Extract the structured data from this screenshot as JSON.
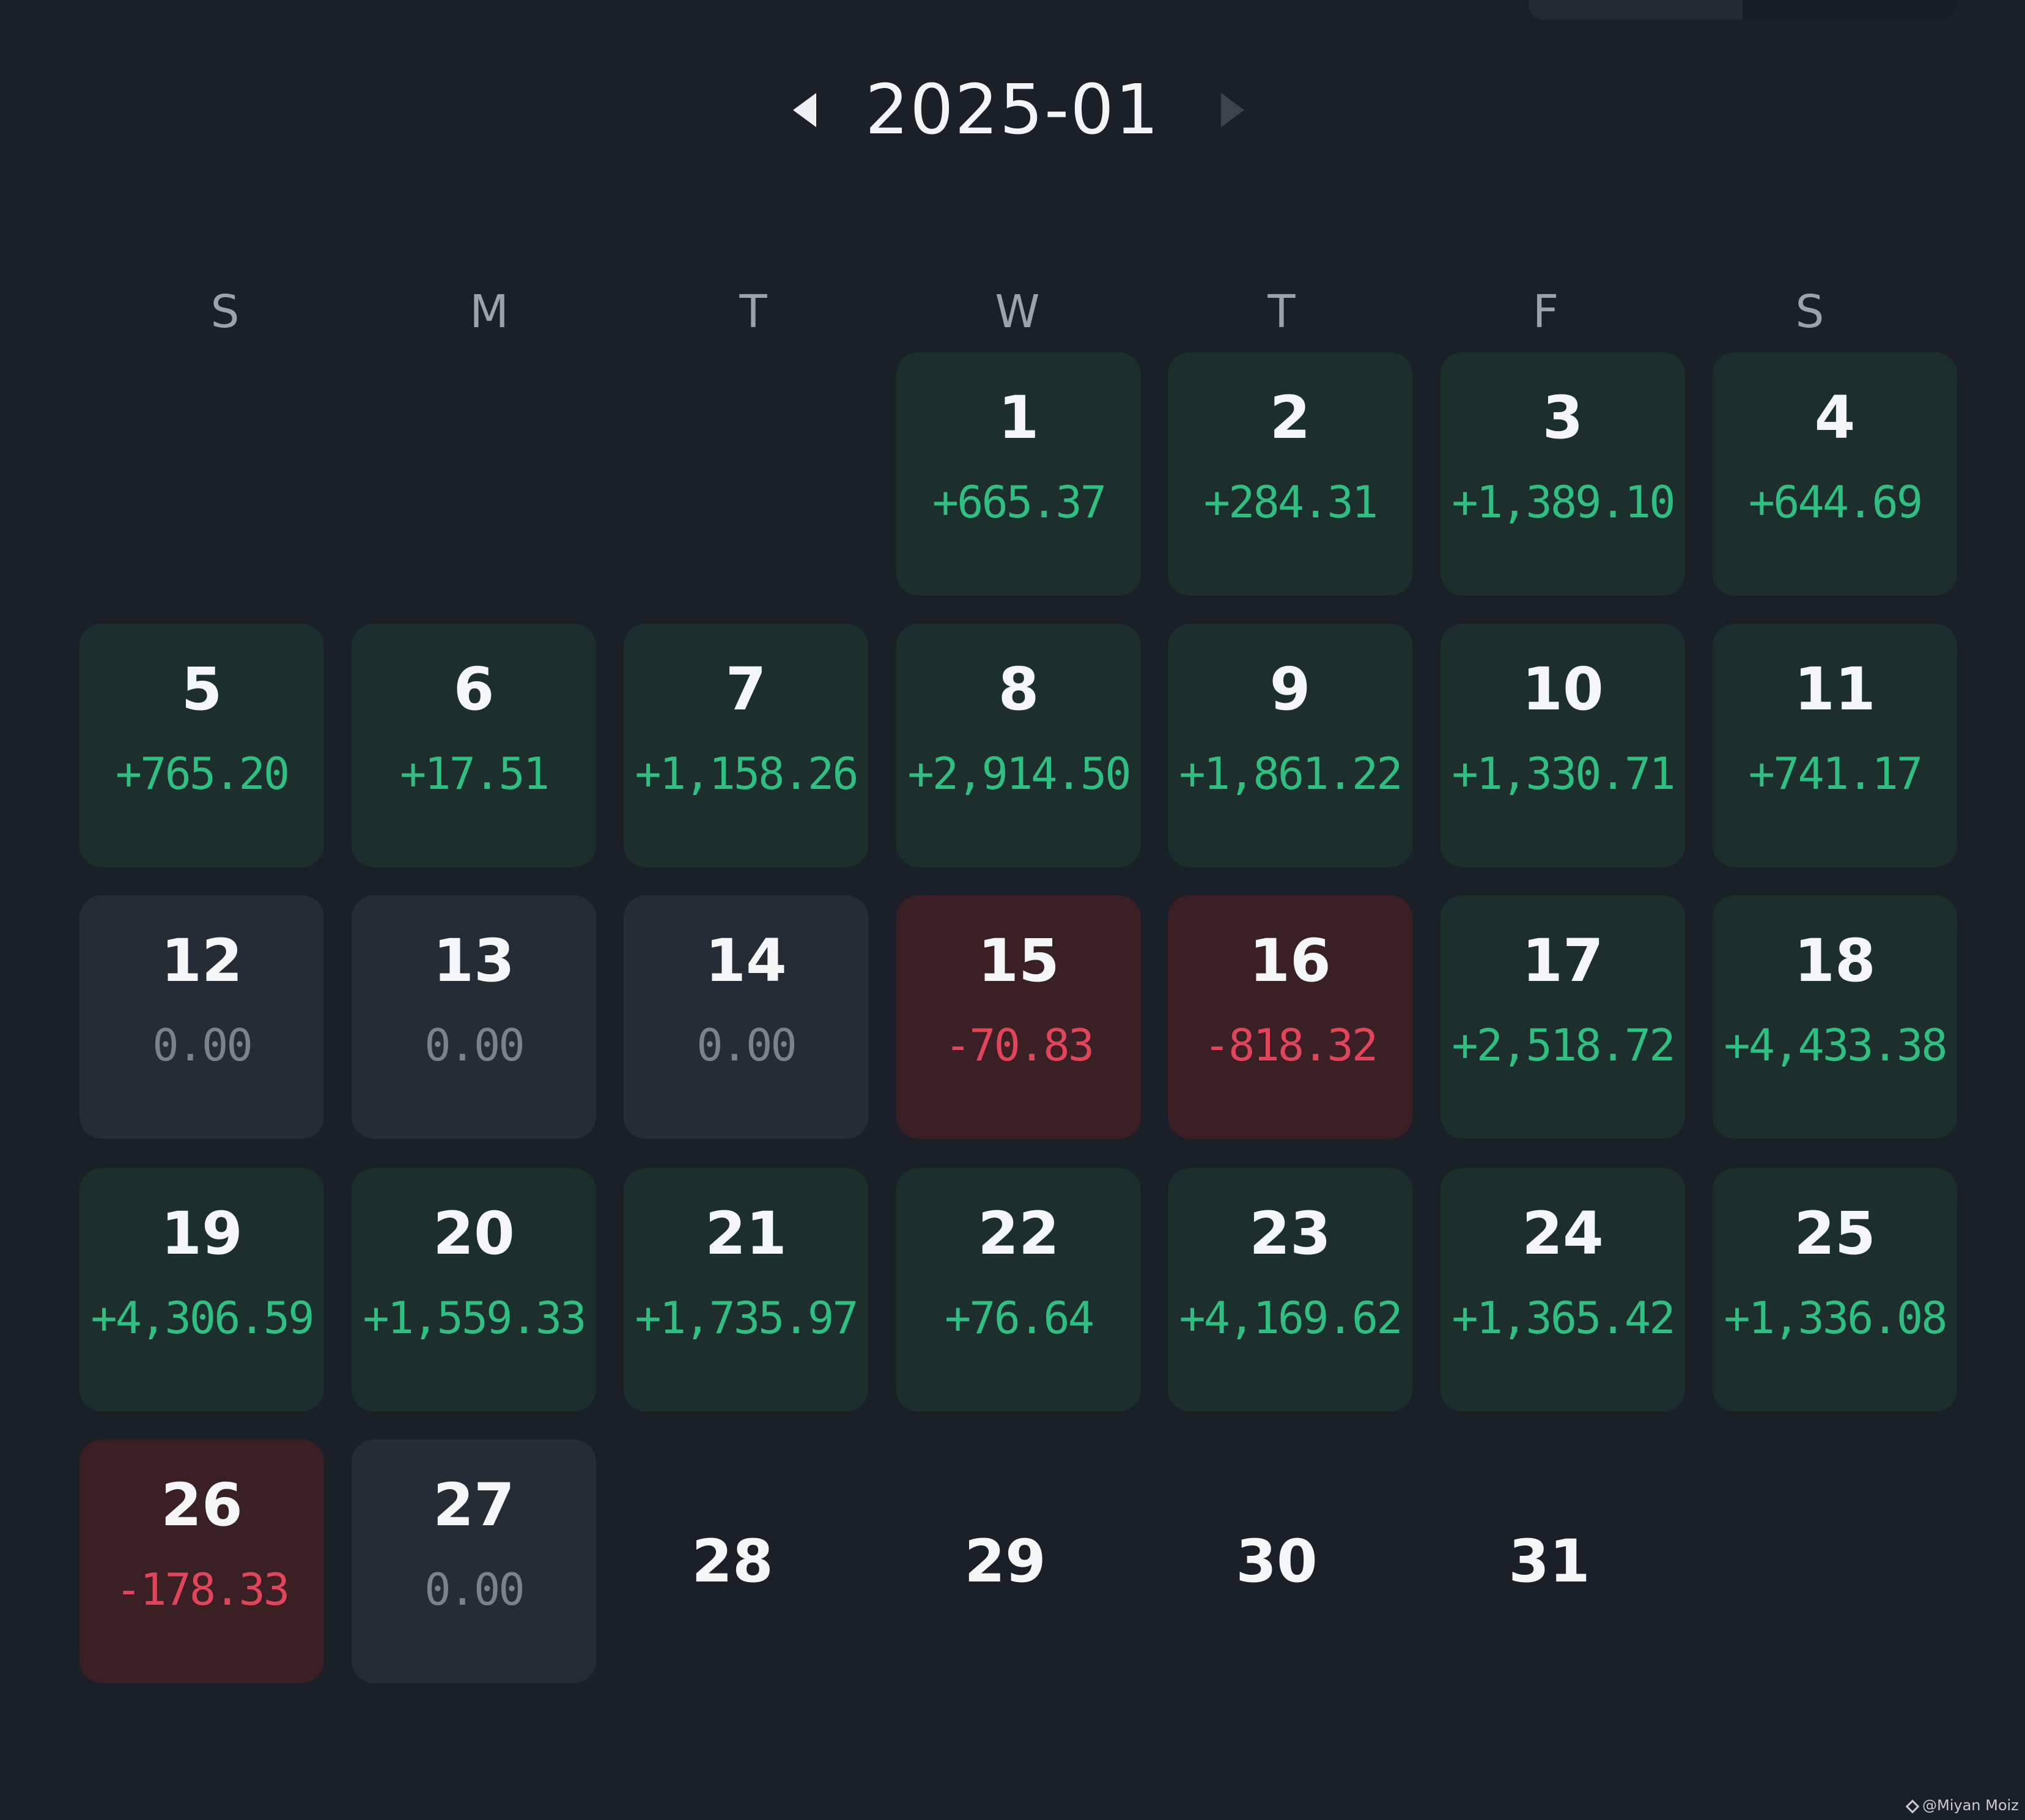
{
  "header": {
    "month": "2025-01",
    "prev_icon": "triangle-left-icon",
    "next_icon": "triangle-right-icon"
  },
  "weekdays": [
    "S",
    "M",
    "T",
    "W",
    "T",
    "F",
    "S"
  ],
  "days": [
    {
      "day": "1",
      "pnl": "+665.37",
      "status": "pos"
    },
    {
      "day": "2",
      "pnl": "+284.31",
      "status": "pos"
    },
    {
      "day": "3",
      "pnl": "+1,389.10",
      "status": "pos"
    },
    {
      "day": "4",
      "pnl": "+644.69",
      "status": "pos"
    },
    {
      "day": "5",
      "pnl": "+765.20",
      "status": "pos"
    },
    {
      "day": "6",
      "pnl": "+17.51",
      "status": "pos"
    },
    {
      "day": "7",
      "pnl": "+1,158.26",
      "status": "pos"
    },
    {
      "day": "8",
      "pnl": "+2,914.50",
      "status": "pos"
    },
    {
      "day": "9",
      "pnl": "+1,861.22",
      "status": "pos"
    },
    {
      "day": "10",
      "pnl": "+1,330.71",
      "status": "pos"
    },
    {
      "day": "11",
      "pnl": "+741.17",
      "status": "pos"
    },
    {
      "day": "12",
      "pnl": "0.00",
      "status": "zero"
    },
    {
      "day": "13",
      "pnl": "0.00",
      "status": "zero"
    },
    {
      "day": "14",
      "pnl": "0.00",
      "status": "zero"
    },
    {
      "day": "15",
      "pnl": "-70.83",
      "status": "neg"
    },
    {
      "day": "16",
      "pnl": "-818.32",
      "status": "neg"
    },
    {
      "day": "17",
      "pnl": "+2,518.72",
      "status": "pos"
    },
    {
      "day": "18",
      "pnl": "+4,433.38",
      "status": "pos"
    },
    {
      "day": "19",
      "pnl": "+4,306.59",
      "status": "pos"
    },
    {
      "day": "20",
      "pnl": "+1,559.33",
      "status": "pos"
    },
    {
      "day": "21",
      "pnl": "+1,735.97",
      "status": "pos"
    },
    {
      "day": "22",
      "pnl": "+76.64",
      "status": "pos"
    },
    {
      "day": "23",
      "pnl": "+4,169.62",
      "status": "pos"
    },
    {
      "day": "24",
      "pnl": "+1,365.42",
      "status": "pos"
    },
    {
      "day": "25",
      "pnl": "+1,336.08",
      "status": "pos"
    },
    {
      "day": "26",
      "pnl": "-178.33",
      "status": "neg"
    },
    {
      "day": "27",
      "pnl": "0.00",
      "status": "zero"
    },
    {
      "day": "28",
      "pnl": "",
      "status": "empty"
    },
    {
      "day": "29",
      "pnl": "",
      "status": "empty"
    },
    {
      "day": "30",
      "pnl": "",
      "status": "empty"
    },
    {
      "day": "31",
      "pnl": "",
      "status": "empty"
    }
  ],
  "first_weekday_index": 3,
  "colors": {
    "background": "#1a1f28",
    "positive": "#2fbf80",
    "negative": "#e0455a",
    "zero": "#7a828d"
  },
  "watermark": {
    "text": "@Miyan Moiz",
    "icon": "binance-diamond-icon"
  }
}
